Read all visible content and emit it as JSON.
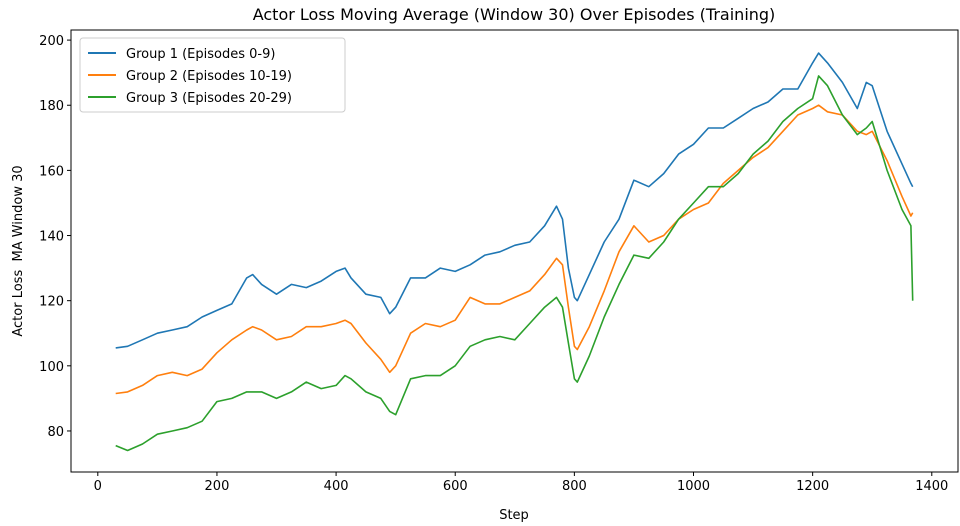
{
  "chart_data": {
    "type": "line",
    "title": "Actor Loss Moving Average (Window 30) Over Episodes (Training)",
    "x_label": "Step",
    "y_label": "Actor Loss  MA Window 30",
    "x": [
      30,
      50,
      75,
      100,
      125,
      150,
      175,
      200,
      225,
      250,
      260,
      275,
      300,
      325,
      350,
      375,
      400,
      415,
      425,
      450,
      475,
      490,
      500,
      525,
      550,
      575,
      600,
      625,
      650,
      675,
      700,
      725,
      750,
      770,
      780,
      790,
      800,
      805,
      825,
      850,
      875,
      900,
      925,
      950,
      975,
      1000,
      1025,
      1050,
      1075,
      1100,
      1125,
      1150,
      1175,
      1200,
      1210,
      1225,
      1250,
      1275,
      1290,
      1300,
      1325,
      1350,
      1365,
      1368
    ],
    "series": [
      {
        "name": "Group 1 (Episodes 0-9)",
        "color": "#1f77b4",
        "values": [
          105.5,
          106,
          108,
          110,
          111,
          112,
          115,
          117,
          119,
          127,
          128,
          125,
          122,
          125,
          124,
          126,
          129,
          130,
          127,
          122,
          121,
          116,
          118,
          127,
          127,
          130,
          129,
          131,
          134,
          135,
          137,
          138,
          143,
          149,
          145,
          130,
          121,
          120,
          128,
          138,
          145,
          157,
          155,
          159,
          165,
          168,
          173,
          173,
          176,
          179,
          181,
          185,
          185,
          193,
          196,
          193,
          187,
          179,
          187,
          186,
          172,
          162,
          156,
          155
        ]
      },
      {
        "name": "Group 2 (Episodes 10-19)",
        "color": "#ff7f0e",
        "values": [
          91.5,
          92,
          94,
          97,
          98,
          97,
          99,
          104,
          108,
          111,
          112,
          111,
          108,
          109,
          112,
          112,
          113,
          114,
          113,
          107,
          102,
          98,
          100,
          110,
          113,
          112,
          114,
          121,
          119,
          119,
          121,
          123,
          128,
          133,
          131,
          118,
          106,
          105,
          112,
          123,
          135,
          143,
          138,
          140,
          145,
          148,
          150,
          156,
          160,
          164,
          167,
          172,
          177,
          179,
          180,
          178,
          177,
          172,
          171,
          172,
          163,
          152,
          146,
          147
        ]
      },
      {
        "name": "Group 3 (Episodes 20-29)",
        "color": "#2ca02c",
        "values": [
          75.5,
          74,
          76,
          79,
          80,
          81,
          83,
          89,
          90,
          92,
          92,
          92,
          90,
          92,
          95,
          93,
          94,
          97,
          96,
          92,
          90,
          86,
          85,
          96,
          97,
          97,
          100,
          106,
          108,
          109,
          108,
          113,
          118,
          121,
          118,
          107,
          96,
          95,
          103,
          115,
          125,
          134,
          133,
          138,
          145,
          150,
          155,
          155,
          159,
          165,
          169,
          175,
          179,
          182,
          189,
          186,
          177,
          171,
          173,
          175,
          160,
          148,
          143,
          120
        ]
      }
    ],
    "xlim": [
      -45,
      1444
    ],
    "ylim": [
      67.4,
      203.1
    ],
    "xticks": [
      0,
      200,
      400,
      600,
      800,
      1000,
      1200,
      1400
    ],
    "yticks": [
      80,
      100,
      120,
      140,
      160,
      180,
      200
    ],
    "grid": false,
    "legend": "upper left"
  }
}
